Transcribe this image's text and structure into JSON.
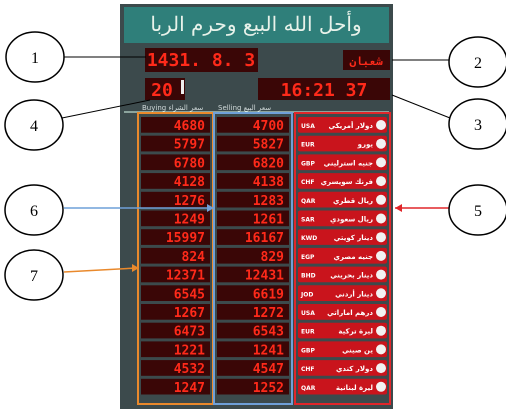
{
  "board": {
    "header": "وأحل الله البيع وحرم الربا",
    "date": "1431. 8. 3",
    "month": "شعبان",
    "temperature": "20",
    "time": "16:21 37",
    "buying_label": "Buying سعر الشراء",
    "selling_label": "Selling سعر البيع",
    "rows": [
      {
        "name": "دولار أمريكي",
        "code": "USA",
        "buy": "4680",
        "sell": "4700"
      },
      {
        "name": "يورو",
        "code": "EUR",
        "buy": "5797",
        "sell": "5827"
      },
      {
        "name": "جنيه استرليني",
        "code": "GBP",
        "buy": "6780",
        "sell": "6820"
      },
      {
        "name": "فرنك سويسري",
        "code": "CHF",
        "buy": "4128",
        "sell": "4138"
      },
      {
        "name": "ريال قطري",
        "code": "QAR",
        "buy": "1276",
        "sell": "1283"
      },
      {
        "name": "ريال سعودي",
        "code": "SAR",
        "buy": "1249",
        "sell": "1261"
      },
      {
        "name": "دينار كويتي",
        "code": "KWD",
        "buy": "15997",
        "sell": "16167"
      },
      {
        "name": "جنيه مصري",
        "code": "EGP",
        "buy": "824",
        "sell": "829"
      },
      {
        "name": "دينار بحريني",
        "code": "BHD",
        "buy": "12371",
        "sell": "12431"
      },
      {
        "name": "دينار أردني",
        "code": "JOD",
        "buy": "6545",
        "sell": "6619"
      },
      {
        "name": "درهم اماراتي",
        "code": "USA",
        "buy": "1267",
        "sell": "1272"
      },
      {
        "name": "ليرة تركية",
        "code": "EUR",
        "buy": "6473",
        "sell": "6543"
      },
      {
        "name": "ين صيني",
        "code": "GBP",
        "buy": "1221",
        "sell": "1241"
      },
      {
        "name": "دولار كندي",
        "code": "CHF",
        "buy": "4532",
        "sell": "4547"
      },
      {
        "name": "ليرة لبنانية",
        "code": "QAR",
        "buy": "1247",
        "sell": "1252"
      }
    ]
  },
  "callouts": [
    "1",
    "2",
    "3",
    "4",
    "5",
    "6",
    "7"
  ]
}
